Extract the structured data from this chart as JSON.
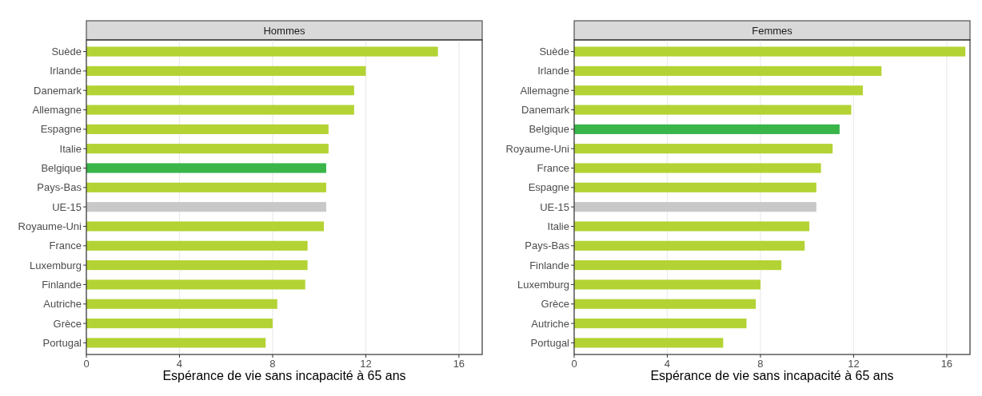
{
  "chart_data": [
    {
      "type": "bar",
      "orientation": "horizontal",
      "title": "Hommes",
      "xlabel": "Espérance de vie sans incapacité à 65 ans",
      "categories": [
        "Suède",
        "Irlande",
        "Danemark",
        "Allemagne",
        "Espagne",
        "Italie",
        "Belgique",
        "Pays-Bas",
        "UE-15",
        "Royaume-Uni",
        "France",
        "Luxemburg",
        "Finlande",
        "Autriche",
        "Grèce",
        "Portugal"
      ],
      "values": [
        15.1,
        12.0,
        11.5,
        11.5,
        10.4,
        10.4,
        10.3,
        10.3,
        10.3,
        10.2,
        9.5,
        9.5,
        9.4,
        8.2,
        8.0,
        7.7
      ],
      "colors": [
        "#b3d334",
        "#b3d334",
        "#b3d334",
        "#b3d334",
        "#b3d334",
        "#b3d334",
        "#39b54a",
        "#b3d334",
        "#c8c8c8",
        "#b3d334",
        "#b3d334",
        "#b3d334",
        "#b3d334",
        "#b3d334",
        "#b3d334",
        "#b3d334"
      ],
      "xlim": [
        0,
        17
      ],
      "xticks": [
        0,
        4,
        8,
        12,
        16
      ],
      "grid": "x"
    },
    {
      "type": "bar",
      "orientation": "horizontal",
      "title": "Femmes",
      "xlabel": "Espérance de vie sans incapacité à 65 ans",
      "categories": [
        "Suède",
        "Irlande",
        "Allemagne",
        "Danemark",
        "Belgique",
        "Royaume-Uni",
        "France",
        "Espagne",
        "UE-15",
        "Italie",
        "Pays-Bas",
        "Finlande",
        "Luxemburg",
        "Grèce",
        "Autriche",
        "Portugal"
      ],
      "values": [
        16.8,
        13.2,
        12.4,
        11.9,
        11.4,
        11.1,
        10.6,
        10.4,
        10.4,
        10.1,
        9.9,
        8.9,
        8.0,
        7.8,
        7.4,
        6.4
      ],
      "colors": [
        "#b3d334",
        "#b3d334",
        "#b3d334",
        "#b3d334",
        "#39b54a",
        "#b3d334",
        "#b3d334",
        "#b3d334",
        "#c8c8c8",
        "#b3d334",
        "#b3d334",
        "#b3d334",
        "#b3d334",
        "#b3d334",
        "#b3d334",
        "#b3d334"
      ],
      "xlim": [
        0,
        17
      ],
      "xticks": [
        0,
        4,
        8,
        12,
        16
      ],
      "grid": "x"
    }
  ]
}
